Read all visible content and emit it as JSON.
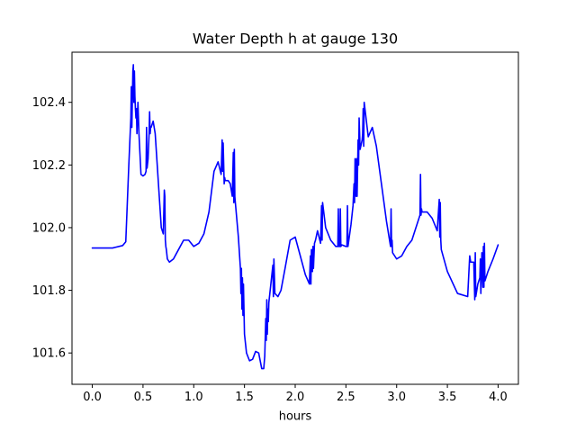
{
  "chart_data": {
    "type": "line",
    "title": "Water Depth h at gauge 130",
    "xlabel": "hours",
    "ylabel": "",
    "xlim": [
      -0.2,
      4.2
    ],
    "ylim": [
      101.5,
      102.56
    ],
    "xticks": [
      0.0,
      0.5,
      1.0,
      1.5,
      2.0,
      2.5,
      3.0,
      3.5,
      4.0
    ],
    "xtick_labels": [
      "0.0",
      "0.5",
      "1.0",
      "1.5",
      "2.0",
      "2.5",
      "3.0",
      "3.5",
      "4.0"
    ],
    "yticks": [
      101.6,
      101.8,
      102.0,
      102.2,
      102.4
    ],
    "ytick_labels": [
      "101.6",
      "101.8",
      "102.0",
      "102.2",
      "102.4"
    ],
    "grid": false,
    "legend": "none",
    "series": [
      {
        "color": "#0000ff",
        "x": [
          0.0,
          0.2,
          0.3,
          0.33,
          0.36,
          0.38,
          0.385,
          0.39,
          0.4,
          0.405,
          0.41,
          0.415,
          0.42,
          0.425,
          0.43,
          0.435,
          0.44,
          0.45,
          0.46,
          0.48,
          0.5,
          0.52,
          0.53,
          0.535,
          0.54,
          0.55,
          0.56,
          0.565,
          0.57,
          0.575,
          0.58,
          0.6,
          0.62,
          0.64,
          0.66,
          0.68,
          0.7,
          0.71,
          0.715,
          0.72,
          0.725,
          0.73,
          0.74,
          0.76,
          0.8,
          0.85,
          0.9,
          0.95,
          1.0,
          1.05,
          1.1,
          1.15,
          1.2,
          1.24,
          1.27,
          1.28,
          1.285,
          1.29,
          1.3,
          1.305,
          1.31,
          1.32,
          1.34,
          1.36,
          1.38,
          1.39,
          1.395,
          1.4,
          1.405,
          1.41,
          1.44,
          1.46,
          1.465,
          1.47,
          1.475,
          1.48,
          1.485,
          1.49,
          1.5,
          1.52,
          1.55,
          1.58,
          1.61,
          1.64,
          1.67,
          1.69,
          1.7,
          1.71,
          1.715,
          1.72,
          1.725,
          1.73,
          1.735,
          1.74,
          1.76,
          1.78,
          1.785,
          1.79,
          1.8,
          1.83,
          1.86,
          1.9,
          1.95,
          2.0,
          2.05,
          2.1,
          2.14,
          2.15,
          2.155,
          2.16,
          2.17,
          2.175,
          2.18,
          2.19,
          2.2,
          2.22,
          2.25,
          2.26,
          2.265,
          2.27,
          2.3,
          2.35,
          2.4,
          2.42,
          2.425,
          2.43,
          2.44,
          2.445,
          2.45,
          2.46,
          2.5,
          2.51,
          2.515,
          2.52,
          2.55,
          2.57,
          2.58,
          2.585,
          2.59,
          2.6,
          2.605,
          2.61,
          2.62,
          2.625,
          2.63,
          2.64,
          2.66,
          2.665,
          2.67,
          2.675,
          2.68,
          2.72,
          2.76,
          2.8,
          2.85,
          2.9,
          2.94,
          2.945,
          2.95,
          2.955,
          2.96,
          3.0,
          3.05,
          3.1,
          3.15,
          3.2,
          3.23,
          3.235,
          3.24,
          3.245,
          3.25,
          3.3,
          3.35,
          3.4,
          3.42,
          3.425,
          3.43,
          3.435,
          3.44,
          3.5,
          3.6,
          3.7,
          3.72,
          3.725,
          3.73,
          3.76,
          3.77,
          3.775,
          3.78,
          3.8,
          3.82,
          3.825,
          3.83,
          3.84,
          3.85,
          3.855,
          3.86,
          3.865,
          3.87,
          3.9,
          3.95,
          4.0
        ],
        "y": [
          101.935,
          101.935,
          101.943,
          101.955,
          102.2,
          102.35,
          102.45,
          102.32,
          102.5,
          102.52,
          102.4,
          102.5,
          102.42,
          102.38,
          102.35,
          102.38,
          102.3,
          102.4,
          102.3,
          102.17,
          102.165,
          102.17,
          102.18,
          102.32,
          102.19,
          102.22,
          102.3,
          102.37,
          102.3,
          102.32,
          102.32,
          102.34,
          102.3,
          102.2,
          102.1,
          102.0,
          101.98,
          102.12,
          102.1,
          101.96,
          101.94,
          101.93,
          101.9,
          101.89,
          101.9,
          101.93,
          101.96,
          101.96,
          101.94,
          101.95,
          101.98,
          102.05,
          102.18,
          102.21,
          102.17,
          102.28,
          102.18,
          102.27,
          102.14,
          102.16,
          102.15,
          102.15,
          102.15,
          102.14,
          102.1,
          102.24,
          102.08,
          102.25,
          102.1,
          102.08,
          101.97,
          101.87,
          101.79,
          101.87,
          101.74,
          101.84,
          101.72,
          101.82,
          101.66,
          101.6,
          101.575,
          101.58,
          101.605,
          101.6,
          101.55,
          101.55,
          101.59,
          101.71,
          101.64,
          101.77,
          101.66,
          101.74,
          101.7,
          101.76,
          101.82,
          101.88,
          101.78,
          101.9,
          101.79,
          101.78,
          101.8,
          101.87,
          101.96,
          101.97,
          101.91,
          101.85,
          101.82,
          101.91,
          101.82,
          101.93,
          101.86,
          101.94,
          101.87,
          101.95,
          101.96,
          101.99,
          101.95,
          102.07,
          101.96,
          102.08,
          102.0,
          101.96,
          101.94,
          101.94,
          102.06,
          101.94,
          101.94,
          102.06,
          101.94,
          101.945,
          101.94,
          101.94,
          102.07,
          101.94,
          102.01,
          102.07,
          102.14,
          102.08,
          102.22,
          102.1,
          102.22,
          102.1,
          102.28,
          102.2,
          102.35,
          102.25,
          102.28,
          102.3,
          102.38,
          102.26,
          102.4,
          102.29,
          102.32,
          102.26,
          102.14,
          102.02,
          101.94,
          102.06,
          101.94,
          101.96,
          101.92,
          101.9,
          101.91,
          101.94,
          101.96,
          102.01,
          102.04,
          102.17,
          102.04,
          102.06,
          102.05,
          102.05,
          102.03,
          101.99,
          102.09,
          101.97,
          102.08,
          101.96,
          101.93,
          101.86,
          101.79,
          101.78,
          101.91,
          101.9,
          101.89,
          101.89,
          101.77,
          101.92,
          101.78,
          101.82,
          101.84,
          101.9,
          101.79,
          101.92,
          101.81,
          101.94,
          101.81,
          101.95,
          101.83,
          101.86,
          101.9,
          101.945
        ]
      }
    ]
  }
}
